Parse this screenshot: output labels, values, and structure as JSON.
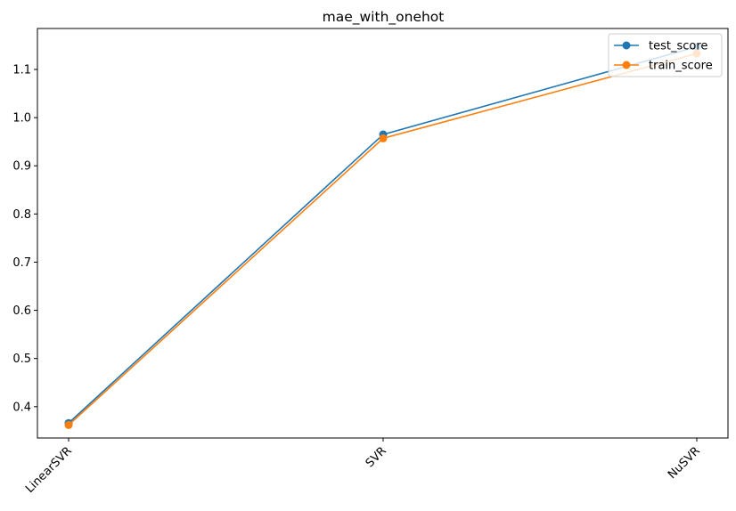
{
  "chart_data": {
    "type": "line",
    "title": "mae_with_onehot",
    "xlabel": "",
    "ylabel": "",
    "categories": [
      "LinearSVR",
      "SVR",
      "NuSVR"
    ],
    "series": [
      {
        "name": "test_score",
        "values": [
          0.366,
          0.965,
          1.147
        ],
        "color": "#1f77b4"
      },
      {
        "name": "train_score",
        "values": [
          0.362,
          0.957,
          1.133
        ],
        "color": "#ff7f0e"
      }
    ],
    "ylim": [
      0.335,
      1.185
    ],
    "yticks": [
      0.4,
      0.5,
      0.6,
      0.7,
      0.8,
      0.9,
      1.0,
      1.1
    ],
    "ytick_labels": [
      "0.4",
      "0.5",
      "0.6",
      "0.7",
      "0.8",
      "0.9",
      "1.0",
      "1.1"
    ],
    "grid": false,
    "legend_position": "top-right",
    "marker": "circle"
  }
}
